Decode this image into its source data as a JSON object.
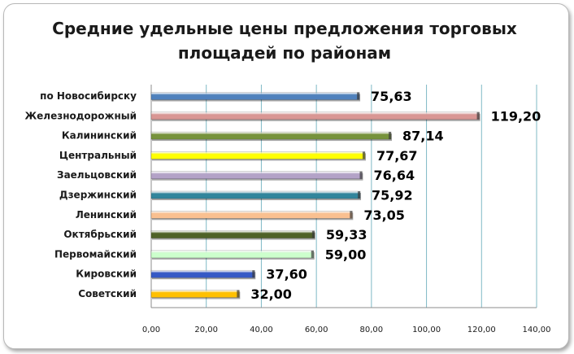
{
  "chart_data": {
    "type": "bar",
    "orientation": "horizontal",
    "title": "Средние удельные цены предложения торговых площадей по районам",
    "categories": [
      "по Новосибирску",
      "Железнодорожный",
      "Калининский",
      "Центральный",
      "Заельцовский",
      "Дзержинский",
      "Ленинский",
      "Октябрьский",
      "Первомайский",
      "Кировский",
      "Советский"
    ],
    "values": [
      75.63,
      119.2,
      87.14,
      77.67,
      76.64,
      75.92,
      73.05,
      59.33,
      59.0,
      37.6,
      32.0
    ],
    "value_labels": [
      "75,63",
      "119,20",
      "87,14",
      "77,67",
      "76,64",
      "75,92",
      "73,05",
      "59,33",
      "59,00",
      "37,60",
      "32,00"
    ],
    "colors": [
      "#4f81bd",
      "#d99694",
      "#77933c",
      "#ffff00",
      "#b3a2c7",
      "#31859c",
      "#fac090",
      "#4f6228",
      "#ccffcc",
      "#3559c5",
      "#ffc000"
    ],
    "xlim": [
      0,
      140
    ],
    "x_ticks": [
      0,
      20,
      40,
      60,
      80,
      100,
      120,
      140
    ],
    "x_tick_labels": [
      "0,00",
      "20,00",
      "40,00",
      "60,00",
      "80,00",
      "100,00",
      "120,00",
      "140,00"
    ],
    "grid": true,
    "legend": "none"
  }
}
